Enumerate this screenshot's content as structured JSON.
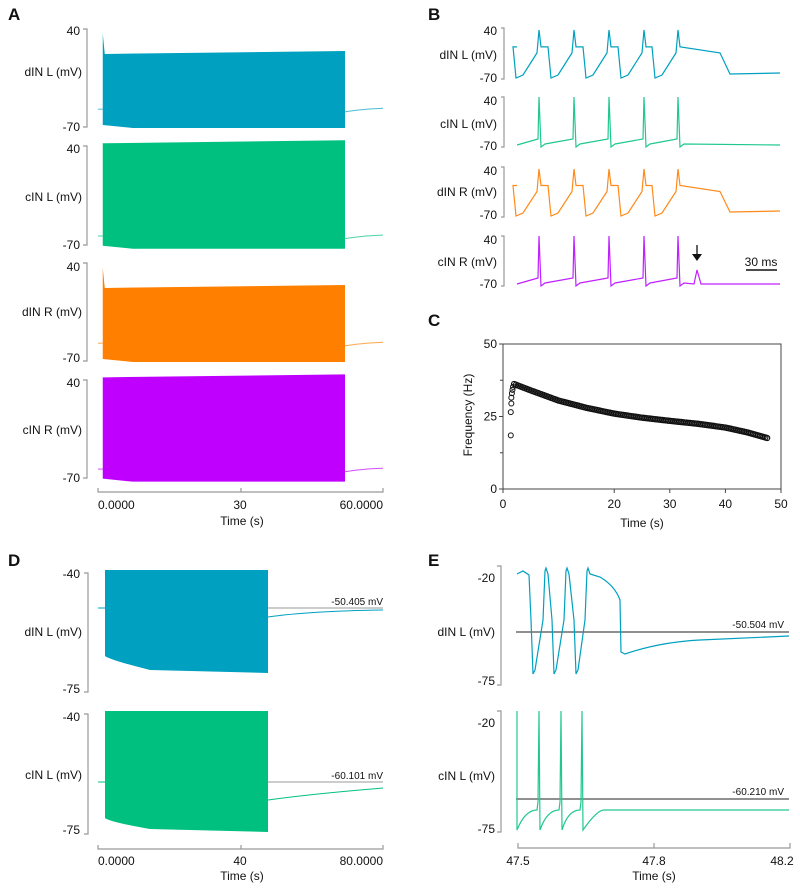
{
  "panels": {
    "A": {
      "label": "A",
      "xaxis": {
        "label": "Time (s)",
        "ticks": [
          "0.0000",
          "30",
          "60.0000"
        ],
        "range": [
          0,
          60
        ]
      },
      "traces": [
        {
          "name": "dIN L (mV)",
          "color": "#00a0c0",
          "ymax": "40",
          "ymin": "-70",
          "rest_mV": -50,
          "start_s": 1,
          "end_s": 52,
          "upper_mV": 12,
          "lower_mV": -70,
          "init_peak_mV": 35
        },
        {
          "name": "cIN L (mV)",
          "color": "#00c080",
          "ymax": "40",
          "ymin": "-70",
          "rest_mV": -60,
          "start_s": 1,
          "end_s": 52,
          "upper_mV": 43,
          "lower_mV": -73,
          "init_peak_mV": 43
        },
        {
          "name": "dIN R (mV)",
          "color": "#ff8000",
          "ymax": "40",
          "ymin": "-70",
          "rest_mV": -50,
          "start_s": 1,
          "end_s": 52,
          "upper_mV": 12,
          "lower_mV": -70,
          "init_peak_mV": 35
        },
        {
          "name": "cIN R (mV)",
          "color": "#c000ff",
          "ymax": "40",
          "ymin": "-70",
          "rest_mV": -60,
          "start_s": 1,
          "end_s": 52,
          "upper_mV": 43,
          "lower_mV": -73,
          "init_peak_mV": 43
        }
      ]
    },
    "B": {
      "label": "B",
      "scalebar": "30 ms",
      "arrow": "down-arrow-icon",
      "traces": [
        {
          "name": "dIN L (mV)",
          "color": "#00a0c0",
          "ymax": "40",
          "ymin": "-70"
        },
        {
          "name": "cIN L (mV)",
          "color": "#20c890",
          "ymax": "40",
          "ymin": "-70"
        },
        {
          "name": "dIN R (mV)",
          "color": "#ff8a1a",
          "ymax": "40",
          "ymin": "-70"
        },
        {
          "name": "cIN R (mV)",
          "color": "#c020ff",
          "ymax": "40",
          "ymin": "-70"
        }
      ]
    },
    "D": {
      "label": "D",
      "xaxis": {
        "label": "Time (s)",
        "ticks": [
          "0.0000",
          "40",
          "80.0000"
        ],
        "range": [
          0,
          80
        ]
      },
      "traces": [
        {
          "name": "dIN L (mV)",
          "color": "#00a0c0",
          "ymax": "-40",
          "ymin": "-75",
          "annotation": "-50.405 mV",
          "ref_mV": -50.405
        },
        {
          "name": "cIN L (mV)",
          "color": "#00c080",
          "ymax": "-40",
          "ymin": "-75",
          "annotation": "-60.101 mV",
          "ref_mV": -60.101
        }
      ]
    },
    "E": {
      "label": "E",
      "xaxis": {
        "label": "Time (s)",
        "ticks": [
          "47.5",
          "47.8",
          "48.2"
        ],
        "range": [
          47.5,
          48.2
        ]
      },
      "traces": [
        {
          "name": "dIN L (mV)",
          "color": "#00a0c0",
          "ymax": "-20",
          "ymin": "-75",
          "annotation": "-50.504 mV",
          "ref_mV": -50.504
        },
        {
          "name": "cIN L (mV)",
          "color": "#20c890",
          "ymax": "-20",
          "ymin": "-75",
          "annotation": "-60.210 mV",
          "ref_mV": -60.21
        }
      ]
    }
  },
  "chart_data": {
    "type": "scatter",
    "panel_label": "C",
    "title": "",
    "xlabel": "Time (s)",
    "ylabel": "Frequency (Hz)",
    "xlim": [
      0,
      50
    ],
    "ylim": [
      0,
      50
    ],
    "xticks": [
      "0",
      "20",
      "30",
      "40",
      "50"
    ],
    "xtick_values": [
      0,
      20,
      30,
      40,
      50
    ],
    "yticks": [
      "0",
      "25",
      "50"
    ],
    "ytick_values": [
      0,
      25,
      50
    ],
    "grid": false,
    "marker": "open-circle",
    "early_points": [
      {
        "x": 1.4,
        "y": 18.5
      },
      {
        "x": 1.4,
        "y": 26.5
      },
      {
        "x": 1.5,
        "y": 29.5
      },
      {
        "x": 1.5,
        "y": 31.5
      },
      {
        "x": 1.6,
        "y": 33.0
      },
      {
        "x": 1.7,
        "y": 34.2
      },
      {
        "x": 1.8,
        "y": 35.2
      }
    ],
    "curve_points": [
      {
        "x": 2.0,
        "y": 36.2
      },
      {
        "x": 5,
        "y": 34.0
      },
      {
        "x": 10,
        "y": 30.5
      },
      {
        "x": 15,
        "y": 28.0
      },
      {
        "x": 20,
        "y": 26.0
      },
      {
        "x": 25,
        "y": 24.6
      },
      {
        "x": 30,
        "y": 23.5
      },
      {
        "x": 35,
        "y": 22.5
      },
      {
        "x": 40,
        "y": 21.2
      },
      {
        "x": 44,
        "y": 19.5
      },
      {
        "x": 47.5,
        "y": 17.6
      }
    ]
  }
}
